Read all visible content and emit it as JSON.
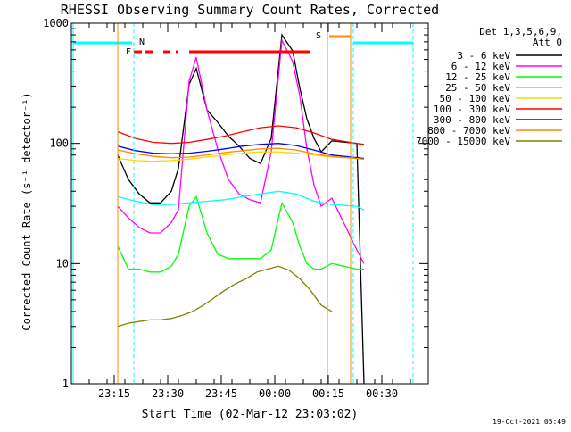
{
  "chart_data": {
    "type": "line",
    "title": "RHESSI Observing Summary Count Rates, Corrected",
    "xlabel": "Start Time (02-Mar-12 23:03:02)",
    "ylabel": "Corrected Count Rate (s⁻¹ detector⁻¹)",
    "y_scale": "log",
    "ylim": [
      1,
      1000
    ],
    "xlim_minutes": [
      0,
      100
    ],
    "x_ticks": [
      {
        "label": "23:15",
        "t": 12
      },
      {
        "label": "23:30",
        "t": 27
      },
      {
        "label": "23:45",
        "t": 42
      },
      {
        "label": "00:00",
        "t": 57
      },
      {
        "label": "00:15",
        "t": 72
      },
      {
        "label": "00:30",
        "t": 87
      }
    ],
    "y_ticks": [
      {
        "label": "1",
        "v": 1
      },
      {
        "label": "10",
        "v": 10
      },
      {
        "label": "100",
        "v": 100
      },
      {
        "label": "1000",
        "v": 1000
      }
    ],
    "grid": false,
    "legend_position": "top-right",
    "legend_header": [
      "Det 1,3,5,6,9,",
      "Att 0"
    ],
    "timestamp": "19-Oct-2021 05:49",
    "flag_labels": [
      "F",
      "N",
      "S"
    ],
    "series": [
      {
        "name": "3 - 6 keV",
        "color": "#000000",
        "x": [
          13,
          16,
          19,
          22,
          25,
          28,
          30,
          33,
          35,
          38,
          41,
          44,
          47,
          50,
          53,
          56,
          59,
          62,
          64,
          66,
          68,
          70,
          73,
          80,
          82
        ],
        "y": [
          80,
          50,
          38,
          32,
          32,
          40,
          62,
          310,
          420,
          190,
          150,
          115,
          95,
          75,
          68,
          110,
          800,
          590,
          290,
          160,
          110,
          85,
          105,
          100,
          1
        ]
      },
      {
        "name": "6 - 12 keV",
        "color": "#ff00ff",
        "x": [
          13,
          16,
          19,
          22,
          25,
          28,
          30,
          33,
          35,
          38,
          41,
          44,
          47,
          50,
          53,
          56,
          59,
          62,
          64,
          66,
          68,
          70,
          73,
          80,
          82
        ],
        "y": [
          30,
          24,
          20,
          18,
          18,
          22,
          28,
          330,
          520,
          190,
          90,
          50,
          38,
          34,
          32,
          85,
          720,
          480,
          250,
          90,
          45,
          30,
          35,
          13,
          10
        ]
      },
      {
        "name": "12 - 25 keV",
        "color": "#00ff00",
        "x": [
          13,
          16,
          19,
          22,
          25,
          28,
          30,
          33,
          35,
          38,
          41,
          44,
          47,
          50,
          53,
          56,
          59,
          62,
          64,
          66,
          68,
          70,
          73,
          80,
          82
        ],
        "y": [
          14,
          9,
          9,
          8.5,
          8.5,
          9.5,
          12,
          30,
          36,
          18,
          12,
          11,
          11,
          11,
          11,
          13,
          32,
          22,
          14,
          10,
          9,
          9,
          10,
          9,
          9
        ]
      },
      {
        "name": "25 - 50 keV",
        "color": "#00ffff",
        "x": [
          13,
          18,
          23,
          28,
          33,
          38,
          43,
          48,
          53,
          58,
          63,
          68,
          73,
          80,
          82
        ],
        "y": [
          36,
          33,
          31,
          31,
          32,
          33,
          34,
          36,
          38,
          40,
          38,
          33,
          31,
          30,
          28
        ]
      },
      {
        "name": "50 - 100 keV",
        "color": "#ffd700",
        "x": [
          13,
          18,
          23,
          28,
          33,
          38,
          43,
          48,
          53,
          58,
          63,
          68,
          73,
          80,
          82
        ],
        "y": [
          75,
          72,
          71,
          72,
          74,
          77,
          80,
          83,
          85,
          85,
          83,
          80,
          77,
          75,
          74
        ]
      },
      {
        "name": "100 - 300 keV",
        "color": "#ff0000",
        "x": [
          13,
          18,
          23,
          28,
          33,
          38,
          43,
          48,
          53,
          58,
          63,
          68,
          73,
          80,
          82
        ],
        "y": [
          125,
          110,
          102,
          100,
          102,
          108,
          115,
          125,
          135,
          140,
          135,
          122,
          108,
          100,
          98
        ]
      },
      {
        "name": "300 - 800 keV",
        "color": "#0000ff",
        "x": [
          13,
          18,
          23,
          28,
          33,
          38,
          43,
          48,
          53,
          58,
          63,
          68,
          73,
          80,
          82
        ],
        "y": [
          95,
          87,
          83,
          82,
          83,
          86,
          90,
          95,
          98,
          100,
          96,
          88,
          80,
          76,
          75
        ]
      },
      {
        "name": "800 - 7000 keV",
        "color": "#ff8c00",
        "x": [
          13,
          18,
          23,
          28,
          33,
          38,
          43,
          48,
          53,
          58,
          63,
          68,
          73,
          80,
          82
        ],
        "y": [
          88,
          82,
          78,
          76,
          77,
          80,
          84,
          87,
          90,
          91,
          88,
          82,
          78,
          75,
          74
        ]
      },
      {
        "name": "7000 - 15000 keV",
        "color": "#808000",
        "x": [
          13,
          16,
          19,
          22,
          25,
          28,
          31,
          34,
          37,
          40,
          43,
          46,
          49,
          52,
          55,
          58,
          61,
          64,
          67,
          70,
          73
        ],
        "y": [
          3,
          3.2,
          3.3,
          3.4,
          3.4,
          3.5,
          3.7,
          4,
          4.5,
          5.2,
          6,
          6.8,
          7.5,
          8.5,
          9,
          9.5,
          8.8,
          7.5,
          6,
          4.5,
          4
        ]
      }
    ]
  }
}
